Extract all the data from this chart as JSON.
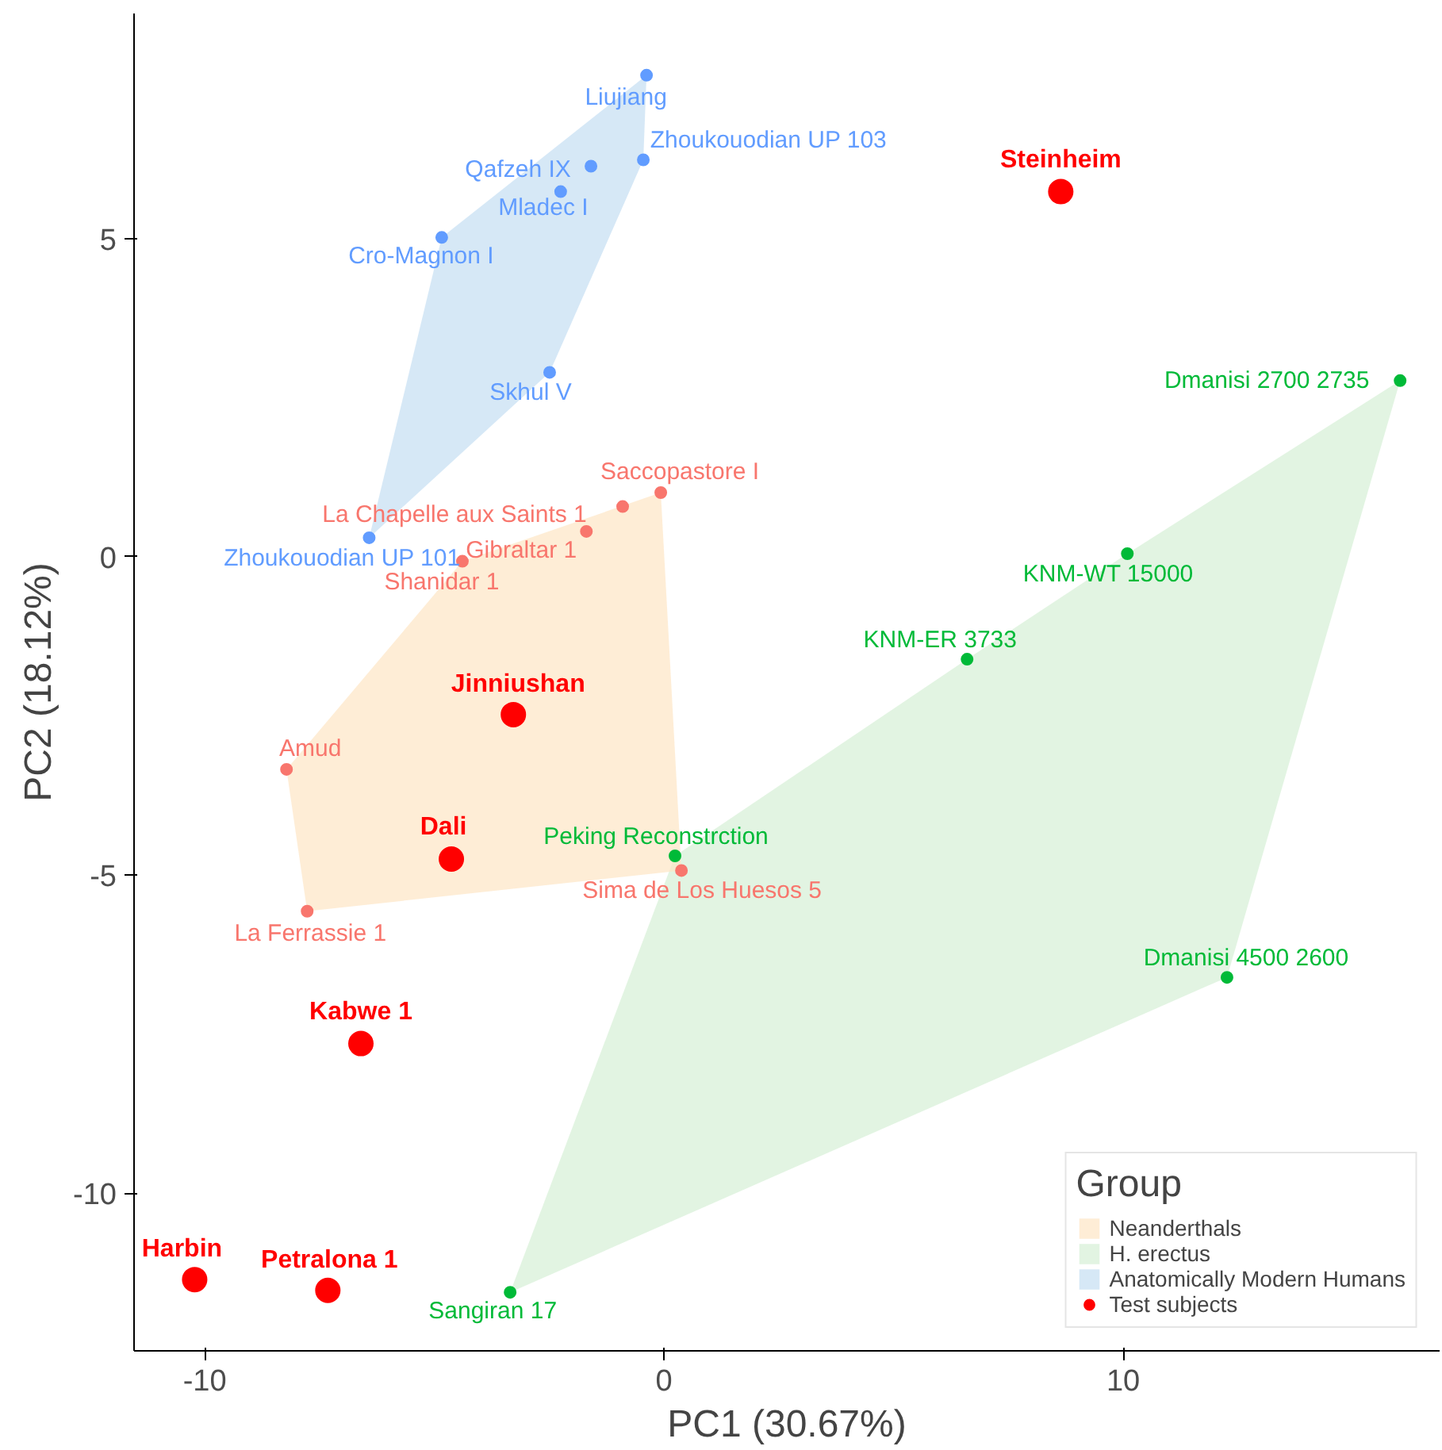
{
  "chart_data": {
    "type": "scatter",
    "xlabel": "PC1 (30.67%)",
    "ylabel": "PC2 (18.12%)",
    "legend_title": "Group",
    "legend": "bottom right",
    "grid": false,
    "marker": "circle",
    "xlim": [
      -11.54,
      16.89
    ],
    "ylim": [
      -12.48,
      8.54
    ],
    "xticks": [
      -10,
      0,
      10
    ],
    "yticks": [
      -10,
      -5,
      0,
      5
    ],
    "series": [
      {
        "name": "Neanderthals",
        "type": "area",
        "color": "#fde5c5",
        "marker": "none",
        "x": [
          -0.07,
          0.38,
          -7.77,
          -8.22,
          -4.39
        ],
        "values": [
          1.01,
          -4.93,
          -5.57,
          -3.34,
          -0.07
        ]
      },
      {
        "name": "H. erectus",
        "type": "area",
        "color": "#d6efd6",
        "marker": "none",
        "x": [
          16.03,
          12.26,
          -3.35,
          0.24,
          6.6,
          10.09
        ],
        "values": [
          2.77,
          -6.61,
          -11.56,
          -4.7,
          -1.61,
          0.05
        ]
      },
      {
        "name": "Anatomically Modern Humans",
        "type": "area",
        "color": "#c5def2",
        "marker": "none",
        "x": [
          -0.38,
          -0.45,
          -2.49,
          -6.42,
          -4.84
        ],
        "values": [
          7.57,
          6.24,
          2.9,
          0.3,
          5.02
        ]
      },
      {
        "color": "#f8766d",
        "x": [
          -0.07,
          -0.9,
          -1.69,
          -4.39,
          -8.22,
          -7.77,
          0.38
        ],
        "values": [
          1.01,
          0.79,
          0.4,
          -0.07,
          -3.34,
          -5.57,
          -4.93
        ],
        "value_labels": [
          "Saccopastore I",
          "La Chapelle aux Saints 1",
          "Gibraltar 1",
          "Shanidar 1",
          "Amud",
          "La Ferrassie 1",
          "Sima de Los Huesos 5"
        ]
      },
      {
        "color": "#00ba38",
        "x": [
          16.03,
          10.09,
          6.6,
          0.24,
          12.26,
          -3.35
        ],
        "values": [
          2.77,
          0.05,
          -1.61,
          -4.7,
          -6.61,
          -11.56
        ],
        "value_labels": [
          "Dmanisi 2700 2735",
          "KNM-WT 15000",
          "KNM-ER 3733",
          "Peking Reconstrction",
          "Dmanisi 4500 2600",
          "Sangiran 17"
        ]
      },
      {
        "color": "#619cff",
        "x": [
          -0.38,
          -0.45,
          -1.59,
          -2.25,
          -4.84,
          -2.49,
          -6.42
        ],
        "values": [
          7.57,
          6.24,
          6.14,
          5.74,
          5.02,
          2.9,
          0.3
        ],
        "value_labels": [
          "Liujiang",
          "Zhoukouodian UP 103",
          "Qafzeh IX",
          "Mladec I",
          "Cro-Magnon I",
          "Skhul V",
          "Zhoukouodian UP 101"
        ]
      },
      {
        "name": "Test subjects",
        "color": "#ff0000",
        "x": [
          8.64,
          -3.28,
          -4.63,
          -6.6,
          -10.22,
          -7.32
        ],
        "values": [
          5.74,
          -2.48,
          -4.75,
          -7.65,
          -11.36,
          -11.53
        ],
        "value_labels": [
          "Steinheim",
          "Jinniushan",
          "Dali",
          "Kabwe 1",
          "Harbin",
          "Petralona 1"
        ]
      }
    ]
  }
}
